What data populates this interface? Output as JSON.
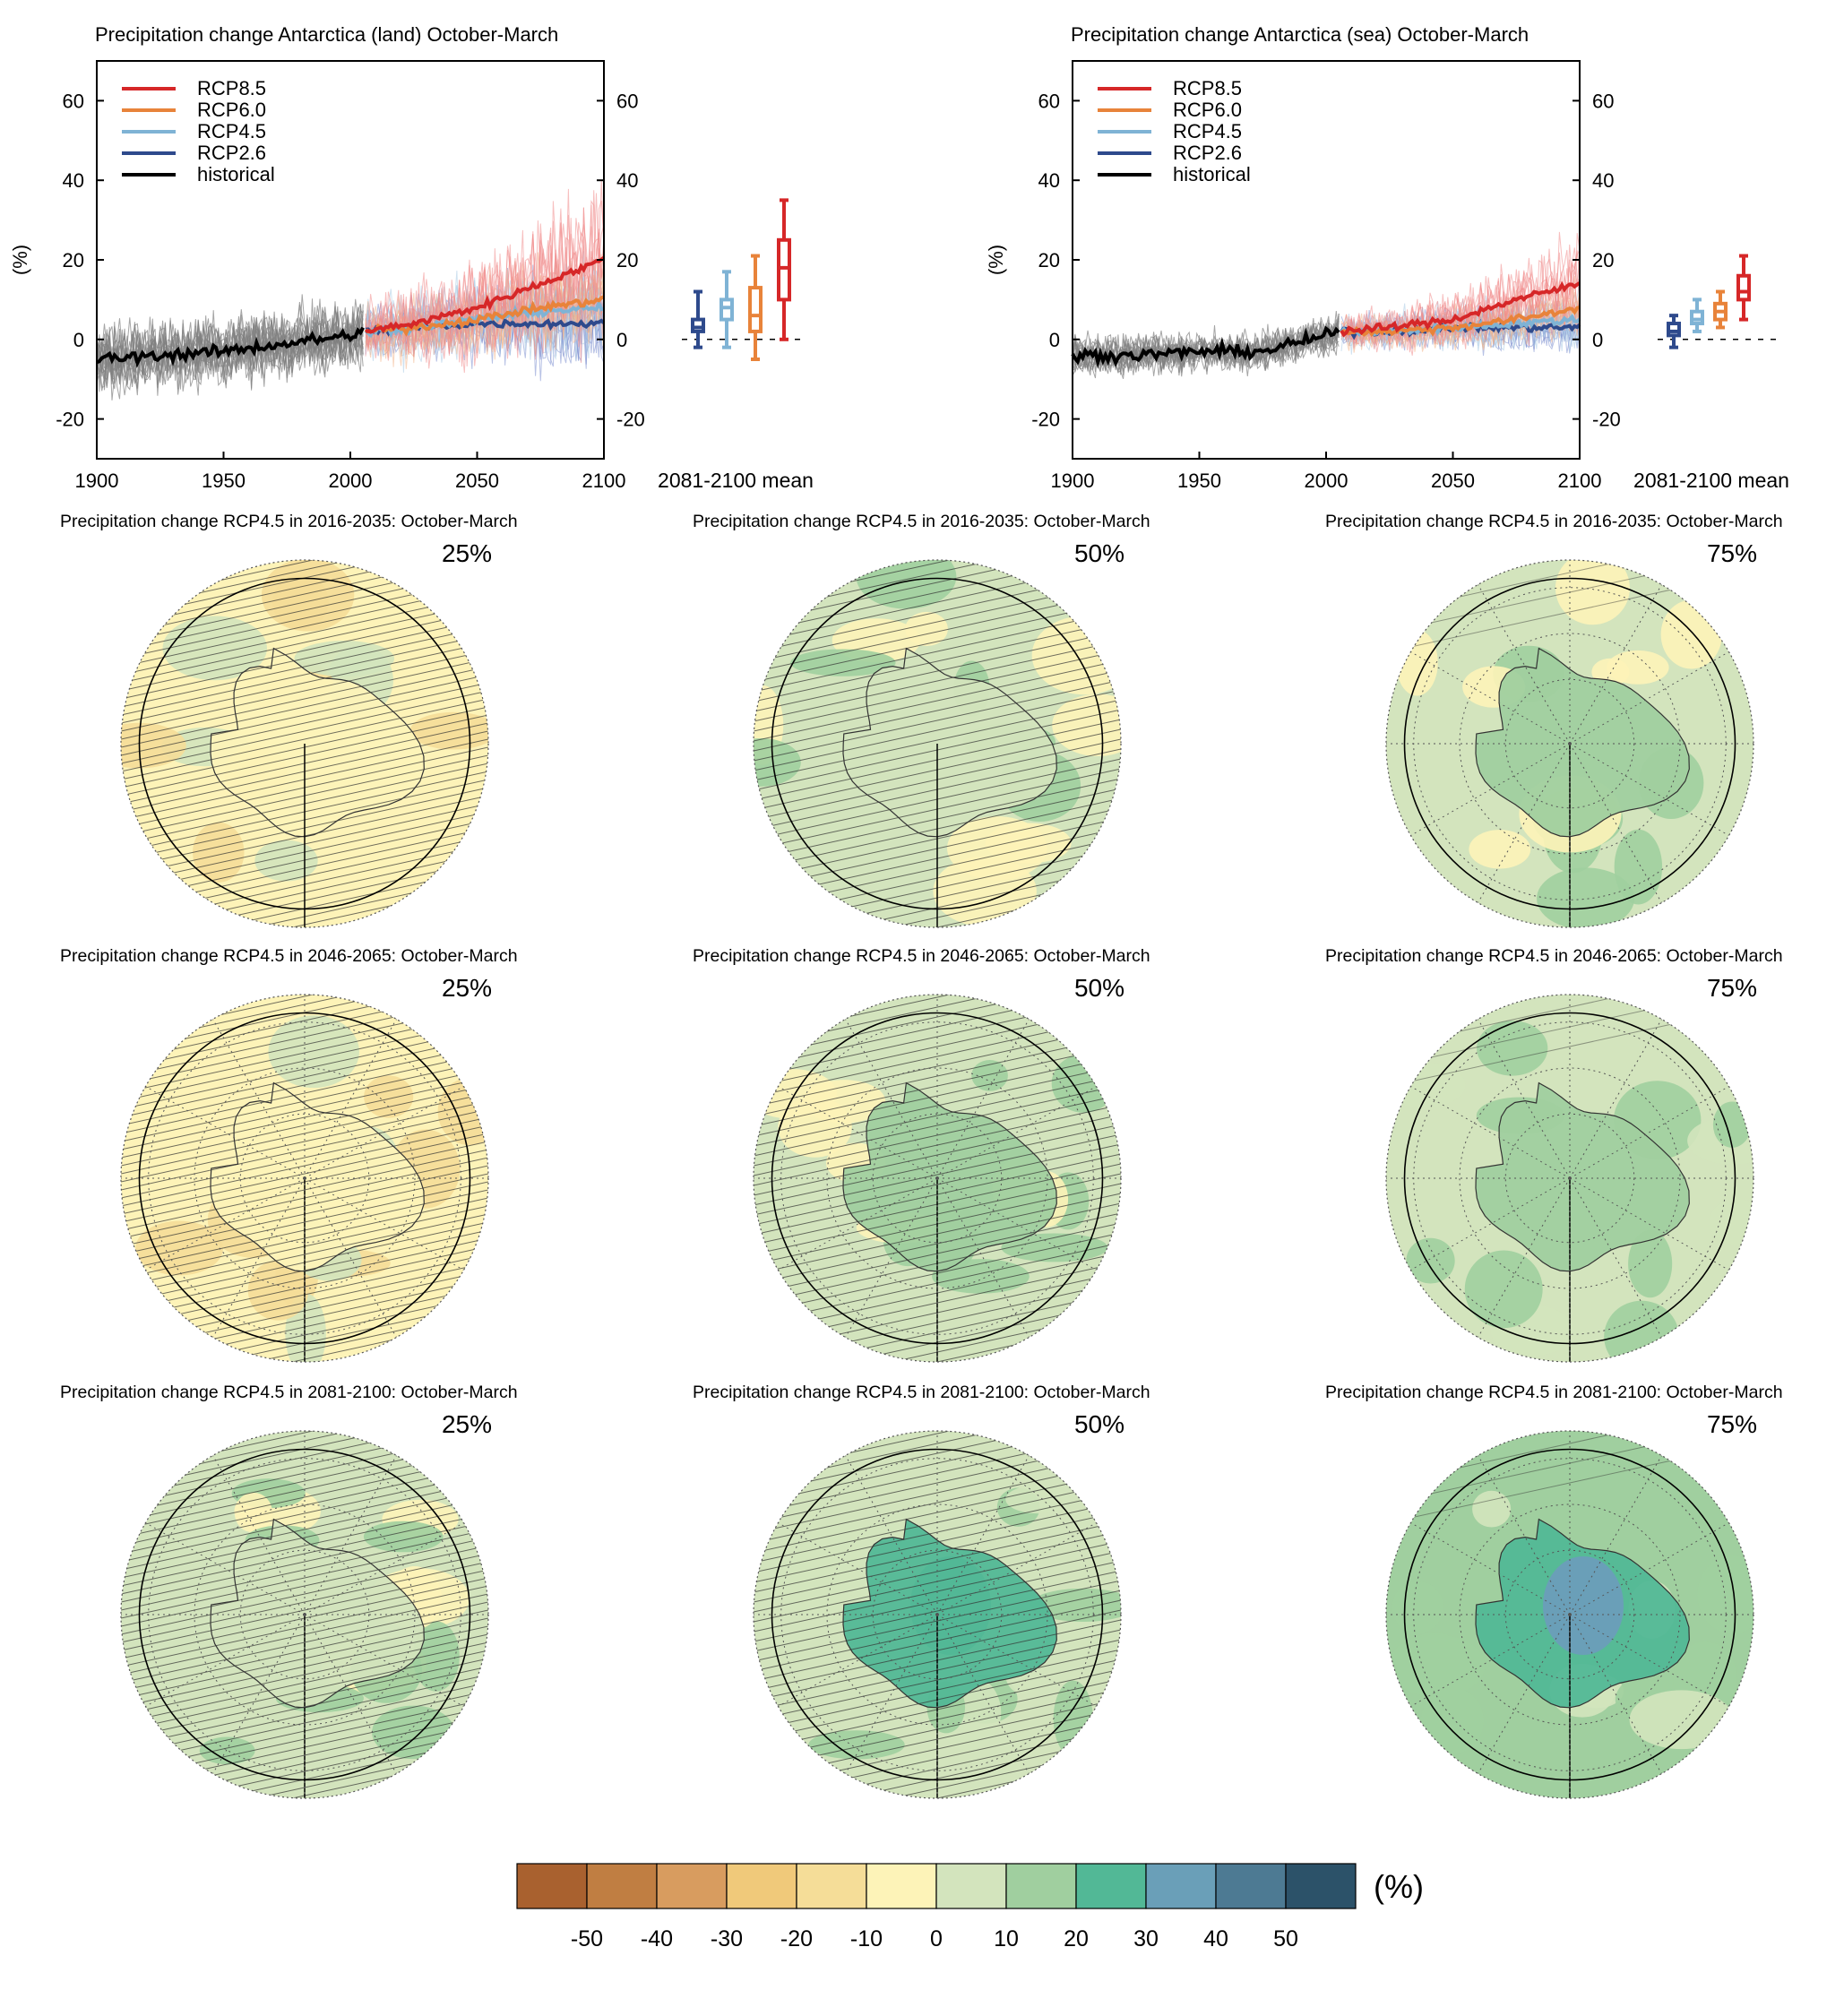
{
  "timeseries_panels": [
    {
      "title": "Precipitation change Antarctica (land) October-March",
      "ylabel": "(%)",
      "box_label": "2081-2100 mean",
      "xticks": [
        "1900",
        "1950",
        "2000",
        "2050",
        "2100"
      ],
      "yticks": [
        "60",
        "40",
        "20",
        "0",
        "-20"
      ]
    },
    {
      "title": "Precipitation change Antarctica (sea) October-March",
      "ylabel": "(%)",
      "box_label": "2081-2100 mean",
      "xticks": [
        "1900",
        "1950",
        "2000",
        "2050",
        "2100"
      ],
      "yticks": [
        "60",
        "40",
        "20",
        "0",
        "-20"
      ]
    }
  ],
  "legend": [
    {
      "name": "RCP8.5",
      "color": "#d62728"
    },
    {
      "name": "RCP6.0",
      "color": "#e8833a"
    },
    {
      "name": "RCP4.5",
      "color": "#7fb3d5"
    },
    {
      "name": "RCP2.6",
      "color": "#2e4a8c"
    },
    {
      "name": "historical",
      "color": "#000000"
    }
  ],
  "map_grid": {
    "row_titles": [
      "Precipitation change RCP4.5 in 2016-2035: October-March",
      "Precipitation change RCP4.5 in 2046-2065: October-March",
      "Precipitation change RCP4.5 in 2081-2100: October-March"
    ],
    "percentiles": [
      "25%",
      "50%",
      "75%"
    ]
  },
  "colorbar": {
    "unit": "(%)",
    "tick_labels": [
      "-50",
      "-40",
      "-30",
      "-20",
      "-10",
      "0",
      "10",
      "20",
      "30",
      "40",
      "50"
    ],
    "colors": [
      "#a9612f",
      "#c07e42",
      "#d89c5f",
      "#f0c97a",
      "#f5dd98",
      "#fdf3b8",
      "#d3e4bd",
      "#a0cf9f",
      "#52b896",
      "#6a9fb8",
      "#4d7a93",
      "#2c5269"
    ]
  },
  "chart_data": [
    {
      "type": "line",
      "title": "Precipitation change Antarctica (land) October-March",
      "ylabel": "(%)",
      "xlim": [
        1900,
        2100
      ],
      "ylim": [
        -30,
        70
      ],
      "grid": false,
      "legend_position": "top-left",
      "series": [
        {
          "name": "historical",
          "x": [
            1900,
            1925,
            1950,
            1975,
            2000,
            2005
          ],
          "y": [
            -5,
            -4,
            -3,
            -1,
            1,
            2
          ]
        },
        {
          "name": "RCP2.6",
          "x": [
            2006,
            2025,
            2050,
            2075,
            2100
          ],
          "y": [
            2,
            3,
            4,
            4,
            4
          ]
        },
        {
          "name": "RCP4.5",
          "x": [
            2006,
            2025,
            2050,
            2075,
            2100
          ],
          "y": [
            2,
            3,
            5,
            7,
            8
          ]
        },
        {
          "name": "RCP6.0",
          "x": [
            2006,
            2025,
            2050,
            2075,
            2100
          ],
          "y": [
            2,
            3,
            5,
            8,
            10
          ]
        },
        {
          "name": "RCP8.5",
          "x": [
            2006,
            2025,
            2050,
            2075,
            2100
          ],
          "y": [
            2,
            4,
            8,
            14,
            20
          ]
        }
      ],
      "boxes_2081_2100_mean": [
        {
          "name": "RCP2.6",
          "min": -2,
          "q1": 2,
          "median": 3,
          "q3": 5,
          "max": 12
        },
        {
          "name": "RCP4.5",
          "min": -2,
          "q1": 5,
          "median": 8,
          "q3": 10,
          "max": 17
        },
        {
          "name": "RCP6.0",
          "min": -5,
          "q1": 2,
          "median": 6,
          "q3": 13,
          "max": 21
        },
        {
          "name": "RCP8.5",
          "min": 0,
          "q1": 10,
          "median": 18,
          "q3": 25,
          "max": 35
        }
      ]
    },
    {
      "type": "line",
      "title": "Precipitation change Antarctica (sea) October-March",
      "ylabel": "(%)",
      "xlim": [
        1900,
        2100
      ],
      "ylim": [
        -30,
        70
      ],
      "grid": false,
      "legend_position": "top-left",
      "series": [
        {
          "name": "historical",
          "x": [
            1900,
            1925,
            1950,
            1975,
            2000,
            2005
          ],
          "y": [
            -4,
            -4,
            -3,
            -3,
            1,
            2
          ]
        },
        {
          "name": "RCP2.6",
          "x": [
            2006,
            2025,
            2050,
            2075,
            2100
          ],
          "y": [
            2,
            2,
            3,
            3,
            3
          ]
        },
        {
          "name": "RCP4.5",
          "x": [
            2006,
            2025,
            2050,
            2075,
            2100
          ],
          "y": [
            2,
            2,
            3,
            4,
            5
          ]
        },
        {
          "name": "RCP6.0",
          "x": [
            2006,
            2025,
            2050,
            2075,
            2100
          ],
          "y": [
            2,
            2,
            3,
            5,
            8
          ]
        },
        {
          "name": "RCP8.5",
          "x": [
            2006,
            2025,
            2050,
            2075,
            2100
          ],
          "y": [
            2,
            3,
            5,
            10,
            14
          ]
        }
      ],
      "boxes_2081_2100_mean": [
        {
          "name": "RCP2.6",
          "min": -2,
          "q1": 1,
          "median": 2,
          "q3": 4,
          "max": 6
        },
        {
          "name": "RCP4.5",
          "min": 2,
          "q1": 4,
          "median": 5,
          "q3": 7,
          "max": 10
        },
        {
          "name": "RCP6.0",
          "min": 3,
          "q1": 5,
          "median": 7,
          "q3": 9,
          "max": 12
        },
        {
          "name": "RCP8.5",
          "min": 5,
          "q1": 10,
          "median": 12,
          "q3": 16,
          "max": 21
        }
      ]
    },
    {
      "type": "heatmap",
      "title": "Precipitation change RCP4.5 maps (October-March), percentiles 25% / 50% / 75%",
      "colorbar_range": [
        -50,
        50
      ],
      "colorbar_step": 10,
      "unit": "(%)"
    }
  ]
}
